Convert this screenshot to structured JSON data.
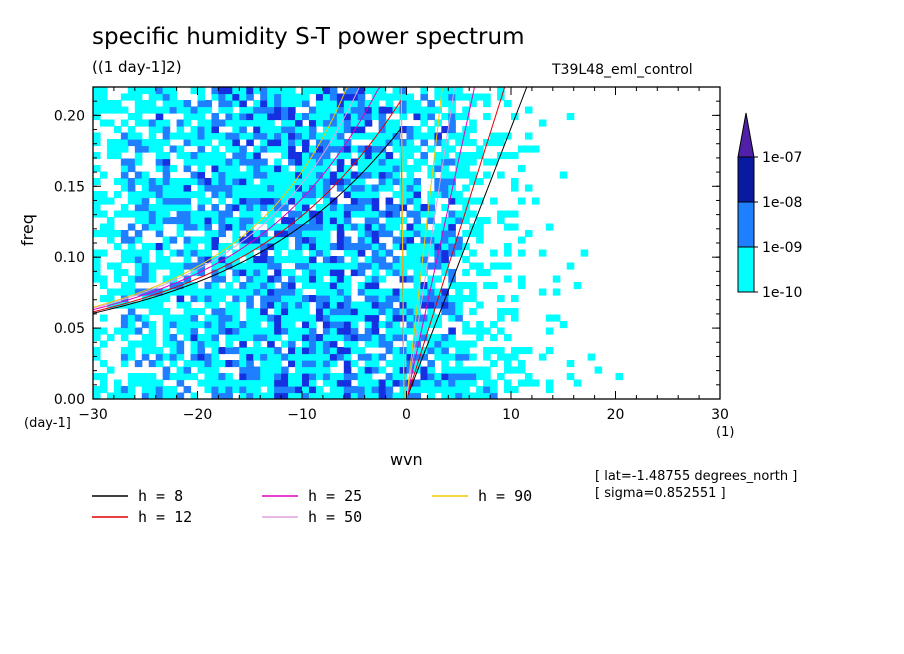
{
  "title": "specific humidity S-T power spectrum",
  "units": "((1 day-1]2)",
  "run_name": "T39L48_eml_control",
  "lat_note": "[ lat=-1.48755 degrees_north ]",
  "sigma_note": "[ sigma=0.852551 ]",
  "x_units_left": "(day-1]",
  "x_units_right": "(1)",
  "colors": {
    "level1": "#00ffff",
    "level2": "#1e7fff",
    "level3": "#1430e0",
    "level4": "#0a1aa0",
    "extend": "#5020a8",
    "h8": "#000000",
    "h12": "#e00000",
    "h25": "#e000c0",
    "h50": "#e0a0e0",
    "h90": "#f0c800"
  },
  "chart_data": {
    "type": "heatmap",
    "title": "specific humidity S-T power spectrum",
    "xlabel": "wvn",
    "ylabel": "freq",
    "xlim": [
      -30,
      30
    ],
    "ylim": [
      0.0,
      0.22
    ],
    "x_ticks": [
      -30,
      -20,
      -10,
      0,
      10,
      20,
      30
    ],
    "x_tick_labels": [
      "−30",
      "−20",
      "−10",
      "0",
      "10",
      "20",
      "30"
    ],
    "y_ticks": [
      0.0,
      0.05,
      0.1,
      0.15,
      0.2
    ],
    "y_tick_labels": [
      "0.00",
      "0.05",
      "0.10",
      "0.15",
      "0.20"
    ],
    "colorbar": {
      "levels": [
        1e-10,
        1e-09,
        1e-08,
        1e-07
      ],
      "labels": [
        "1e-10",
        "1e-09",
        "1e-08",
        "1e-07"
      ],
      "extend": "max"
    },
    "field_description_values": {
      "high_power_wvn_range": [
        -20,
        5
      ],
      "high_power_freq_range": [
        0.0,
        0.22
      ]
    },
    "dispersion_curves": [
      {
        "name": "h =  8",
        "h": 8,
        "color_key": "h8"
      },
      {
        "name": "h = 12",
        "h": 12,
        "color_key": "h12"
      },
      {
        "name": "h = 25",
        "h": 25,
        "color_key": "h25"
      },
      {
        "name": "h = 50",
        "h": 50,
        "color_key": "h50"
      },
      {
        "name": "h = 90",
        "h": 90,
        "color_key": "h90"
      }
    ]
  }
}
